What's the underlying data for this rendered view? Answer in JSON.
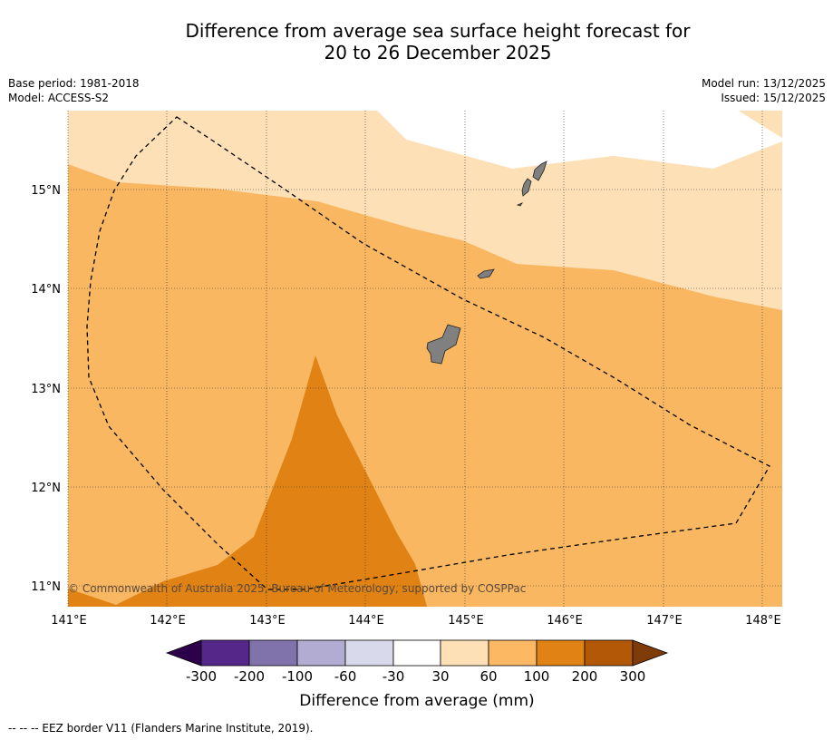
{
  "title_line1": "Difference from average sea surface height forecast for",
  "title_line2": "20 to 26 December 2025",
  "meta_left": {
    "base_period": "Base period: 1981-2018",
    "model": "Model: ACCESS-S2"
  },
  "meta_right": {
    "model_run": "Model run: 13/12/2025",
    "issued": "Issued: 15/12/2025"
  },
  "map": {
    "lat_labels": [
      "15°N",
      "14°N",
      "13°N",
      "12°N",
      "11°N"
    ],
    "lon_labels": [
      "141°E",
      "142°E",
      "143°E",
      "144°E",
      "145°E",
      "146°E",
      "147°E",
      "148°E"
    ],
    "copyright": "© Commonwealth of Australia 2025, Bureau of Meteorology, supported by COSPPac",
    "colors": {
      "band_30_60": "#fde0b6",
      "band_60_100": "#f9b762",
      "band_100_200": "#e08214",
      "land": "#808080"
    }
  },
  "legend": {
    "tick_labels": [
      "-300",
      "-200",
      "-100",
      "-60",
      "-30",
      "30",
      "60",
      "100",
      "200",
      "300"
    ],
    "label": "Difference from average (mm)",
    "colors": [
      "#2d004b",
      "#542788",
      "#8073ac",
      "#b2abd2",
      "#d8daeb",
      "#ffffff",
      "#fee0b6",
      "#fdb863",
      "#e08214",
      "#b35806",
      "#7f3b08"
    ]
  },
  "footer": "--  --  -- EEZ border V11 (Flanders Marine Institute, 2019)."
}
